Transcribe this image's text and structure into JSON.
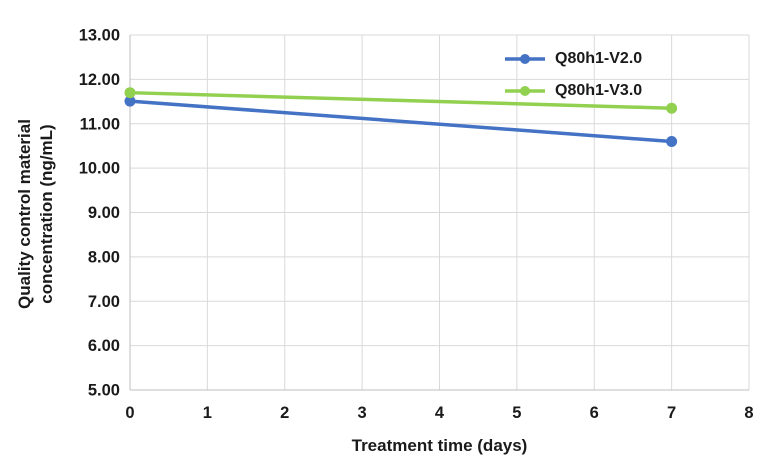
{
  "chart_data": {
    "type": "line",
    "title": "",
    "xlabel": "Treatment time (days)",
    "ylabel": "Quality control material\nconcentration (ng/mL)",
    "x": [
      0,
      7
    ],
    "series": [
      {
        "name": "Q80h1-V2.0",
        "color": "#4472C4",
        "values": [
          11.51,
          10.6
        ]
      },
      {
        "name": "Q80h1-V3.0",
        "color": "#92D050",
        "values": [
          11.7,
          11.35
        ]
      }
    ],
    "xlim": [
      0,
      8
    ],
    "ylim": [
      5,
      13
    ],
    "x_ticks": [
      0,
      1,
      2,
      3,
      4,
      5,
      6,
      7,
      8
    ],
    "y_ticks": [
      5,
      6,
      7,
      8,
      9,
      10,
      11,
      12,
      13
    ],
    "y_tick_format": "2dp",
    "grid": true,
    "legend_position": "top-right-inside",
    "colors": {
      "gridline": "#D9D9D9",
      "axis_line": "#BFBFBF",
      "text": "#1A1A1A",
      "background": "#FFFFFF"
    },
    "marker": "circle",
    "line_width": 3.5,
    "marker_radius": 5.5
  }
}
